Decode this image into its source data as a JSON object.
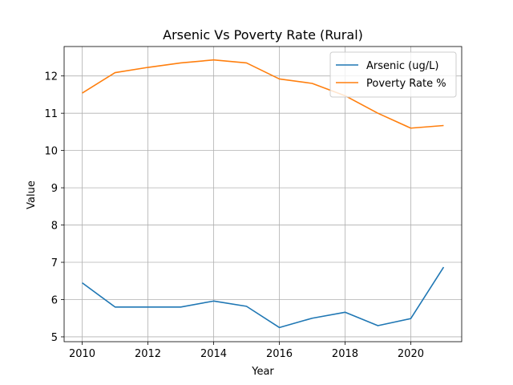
{
  "chart_data": {
    "type": "line",
    "title": "Arsenic Vs Poverty Rate (Rural)",
    "xlabel": "Year",
    "ylabel": "Value",
    "x": [
      2010,
      2011,
      2012,
      2013,
      2014,
      2015,
      2016,
      2017,
      2018,
      2019,
      2020,
      2021
    ],
    "xlim": [
      2009.45,
      2021.55
    ],
    "ylim": [
      4.87,
      12.79
    ],
    "xticks": [
      2010,
      2012,
      2014,
      2016,
      2018,
      2020
    ],
    "yticks": [
      5,
      6,
      7,
      8,
      9,
      10,
      11,
      12
    ],
    "grid": true,
    "legend_position": "top-right",
    "series": [
      {
        "name": "Arsenic (ug/L)",
        "color": "#1f77b4",
        "values": [
          6.45,
          5.8,
          5.8,
          5.8,
          5.96,
          5.82,
          5.25,
          5.5,
          5.66,
          5.3,
          5.49,
          6.87
        ]
      },
      {
        "name": "Poverty Rate %",
        "color": "#ff7f0e",
        "values": [
          11.54,
          12.09,
          12.23,
          12.35,
          12.43,
          12.35,
          11.92,
          11.8,
          11.47,
          11.0,
          10.6,
          10.67
        ]
      }
    ]
  }
}
